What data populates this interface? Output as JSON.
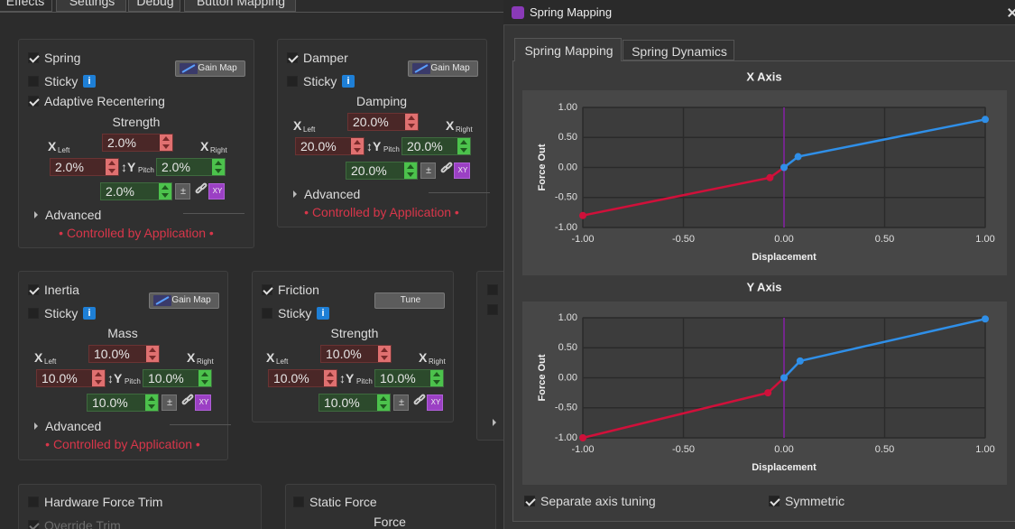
{
  "main_tabs": [
    "Effects",
    "Settings",
    "Debug",
    "Button Mapping"
  ],
  "effects": [
    {
      "title": "Spring",
      "sticky": "Sticky",
      "info": "i",
      "button": "Gain Map",
      "option": "Adaptive Recentering",
      "section": "Strength",
      "axis_labels": [
        "X",
        "Left",
        "X",
        "Right",
        "↕Y",
        "Pitch"
      ],
      "fields": [
        "2.0%",
        "2.0%",
        "2.0%",
        "2.0%"
      ],
      "tools": [
        "±",
        "XY"
      ],
      "advanced": "Advanced",
      "status": "• Controlled by Application •"
    },
    {
      "title": "Damper",
      "sticky": "Sticky",
      "info": "i",
      "button": "Gain Map",
      "section": "Damping",
      "axis_labels": [
        "X",
        "Left",
        "X",
        "Right",
        "↕Y",
        "Pitch"
      ],
      "fields": [
        "20.0%",
        "20.0%",
        "20.0%",
        "20.0%"
      ],
      "tools": [
        "±",
        "XY"
      ],
      "advanced": "Advanced",
      "status": "• Controlled by Application •"
    },
    {
      "title": "Inertia",
      "sticky": "Sticky",
      "info": "i",
      "button": "Gain Map",
      "section": "Mass",
      "axis_labels": [
        "X",
        "Left",
        "X",
        "Right",
        "↕Y",
        "Pitch"
      ],
      "fields": [
        "10.0%",
        "10.0%",
        "10.0%",
        "10.0%"
      ],
      "tools": [
        "±",
        "XY"
      ],
      "advanced": "Advanced",
      "status": "• Controlled by Application •"
    },
    {
      "title": "Friction",
      "sticky": "Sticky",
      "info": "i",
      "button": "Tune",
      "section": "Strength",
      "axis_labels": [
        "X",
        "Left",
        "X",
        "Right",
        "↕Y",
        "Pitch"
      ],
      "fields": [
        "10.0%",
        "10.0%",
        "10.0%",
        "10.0%"
      ],
      "tools": [
        "±",
        "XY"
      ]
    }
  ],
  "trim": {
    "title": "Hardware Force Trim",
    "option": "Override Trim"
  },
  "static_force": {
    "title": "Static Force",
    "label": "Force"
  },
  "window": {
    "title": "Spring Mapping",
    "tabs": [
      "Spring Mapping",
      "Spring Dynamics"
    ],
    "options": [
      "Separate axis tuning",
      "Symmetric"
    ]
  },
  "chart_data": [
    {
      "type": "line",
      "title": "X Axis",
      "x_label": "Displacement",
      "y_label": "Force Out",
      "xlim": [
        -1,
        1
      ],
      "ylim": [
        -1,
        1
      ],
      "grid": true,
      "xticks": [
        {
          "value": -1,
          "label": "-1.00"
        },
        {
          "value": -0.5,
          "label": "-0.50"
        },
        {
          "value": 0,
          "label": "0.00"
        },
        {
          "value": 0.5,
          "label": "0.50"
        },
        {
          "value": 1,
          "label": "1.00"
        }
      ],
      "yticks": [
        {
          "value": 1,
          "label": "1.00"
        },
        {
          "value": 0.5,
          "label": "0.50"
        },
        {
          "value": 0,
          "label": "0.00"
        },
        {
          "value": -0.5,
          "label": "-0.50"
        },
        {
          "value": -1,
          "label": "-1.00"
        }
      ],
      "series": [
        {
          "color": "#d0103a",
          "x": [
            -1,
            -0.07,
            0
          ],
          "values": [
            -0.8,
            -0.17,
            0
          ]
        },
        {
          "color": "#2f8fe8",
          "x": [
            0,
            0.07,
            1
          ],
          "values": [
            0,
            0.18,
            0.8
          ]
        }
      ]
    },
    {
      "type": "line",
      "title": "Y Axis",
      "x_label": "Displacement",
      "y_label": "Force Out",
      "xlim": [
        -1,
        1
      ],
      "ylim": [
        -1,
        1
      ],
      "grid": true,
      "xticks": [
        {
          "value": -1,
          "label": "-1.00"
        },
        {
          "value": -0.5,
          "label": "-0.50"
        },
        {
          "value": 0,
          "label": "0.00"
        },
        {
          "value": 0.5,
          "label": "0.50"
        },
        {
          "value": 1,
          "label": "1.00"
        }
      ],
      "yticks": [
        {
          "value": 1,
          "label": "1.00"
        },
        {
          "value": 0.5,
          "label": "0.50"
        },
        {
          "value": 0,
          "label": "0.00"
        },
        {
          "value": -0.5,
          "label": "-0.50"
        },
        {
          "value": -1,
          "label": "-1.00"
        }
      ],
      "series": [
        {
          "color": "#d0103a",
          "x": [
            -1,
            -0.08,
            0
          ],
          "values": [
            -1,
            -0.25,
            0
          ]
        },
        {
          "color": "#2f8fe8",
          "x": [
            0,
            0.08,
            1
          ],
          "values": [
            0,
            0.28,
            0.98
          ]
        }
      ]
    }
  ]
}
